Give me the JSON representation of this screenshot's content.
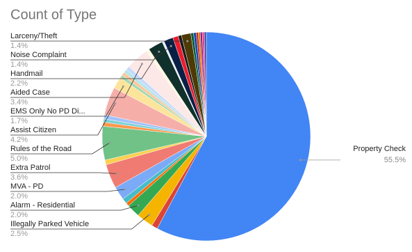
{
  "chart_data": {
    "type": "pie",
    "title": "Count of Type",
    "categories": [
      "Property Check",
      null,
      "Illegally Parked Vehicle",
      "Alarm - Residential",
      null,
      null,
      "MVA - PD",
      "Extra Patrol",
      null,
      "Rules of the Road",
      null,
      null,
      null,
      "Assist Citizen",
      "EMS Only No PD Di...",
      null,
      null,
      null,
      null,
      "Aided Case",
      null,
      "Handmail",
      null,
      "Noise Complaint",
      null,
      null,
      "Larceny/Theft",
      null,
      null,
      null,
      null,
      null,
      null,
      null
    ],
    "values": [
      55.5,
      0.9,
      2.5,
      2.0,
      0.5,
      0.8,
      2.0,
      3.6,
      0.7,
      5.0,
      0.6,
      0.5,
      0.6,
      4.2,
      1.7,
      0.5,
      0.5,
      0.5,
      0.6,
      3.4,
      0.5,
      2.2,
      0.3,
      1.4,
      0.8,
      0.5,
      1.4,
      0.4,
      0.4,
      0.3,
      0.3,
      0.3,
      0.3,
      0.3
    ],
    "value_labels": [
      "55.5%",
      null,
      "2.5%",
      "2.0%",
      null,
      null,
      "2.0%",
      "3.6%",
      null,
      "5.0%",
      null,
      null,
      null,
      "4.2%",
      "1.7%",
      null,
      null,
      null,
      null,
      "3.4%",
      null,
      "2.2%",
      null,
      "1.4%",
      null,
      null,
      "1.4%",
      null,
      null,
      null,
      null,
      null,
      null,
      null
    ],
    "colors": [
      "#4285f4",
      "#db4437",
      "#f4b400",
      "#34a853",
      "#ff6d01",
      "#46bdc6",
      "#7baaf7",
      "#f07b72",
      "#fcd04f",
      "#71c287",
      "#ff994d",
      "#7ed1d7",
      "#a0c2f9",
      "#f6aea9",
      "#fde49b",
      "#a5d8b2",
      "#ffc599",
      "#b3e5e8",
      "#c6dafc",
      "#fce8e6",
      "#fef6e0",
      "#10302b",
      "#e8f0fe",
      "#0a1f44",
      "#ea1c2d",
      "#1a1a1a",
      "#4d3a05",
      "#0b5b3c",
      "#1746a2",
      "#c5221f",
      "#e37400",
      "#7b1fa2",
      "#ec407a",
      "#3949ab"
    ]
  }
}
